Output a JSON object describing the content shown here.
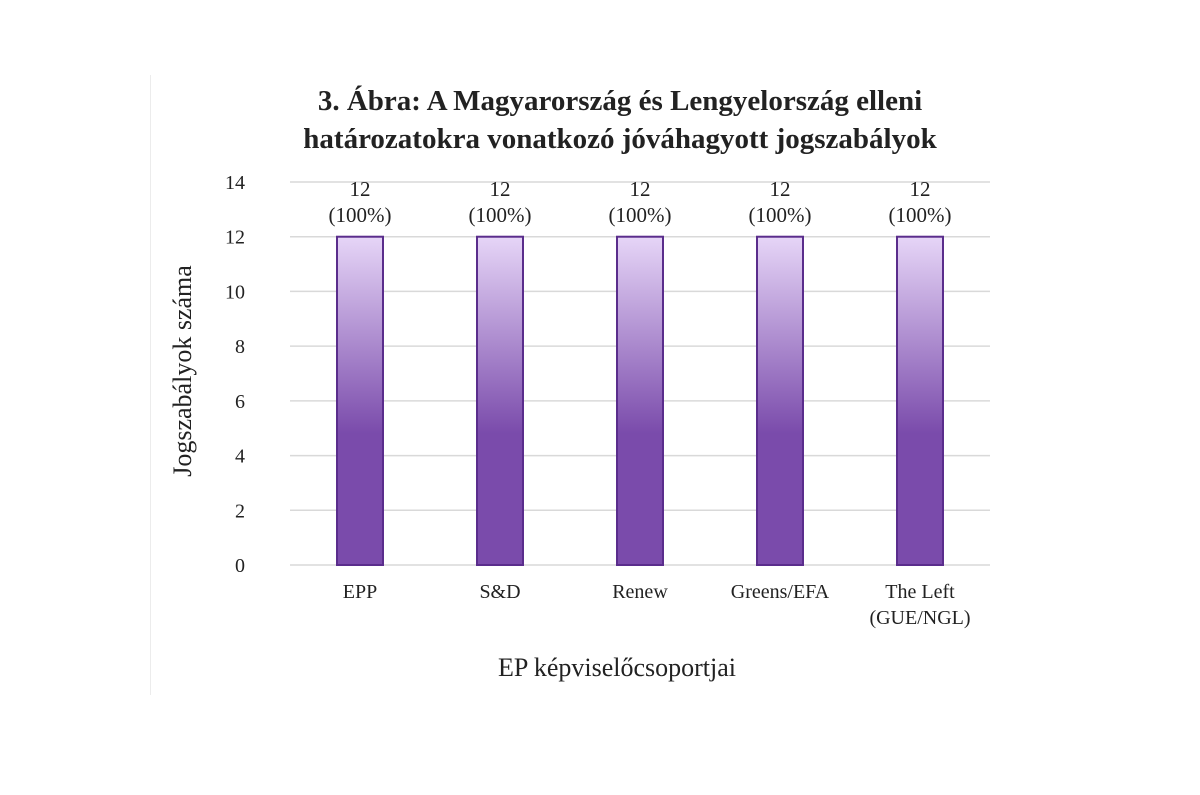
{
  "chart_data": {
    "type": "bar",
    "title_lines": [
      "3. Ábra: A Magyarország és Lengyelország elleni",
      "határozatokra vonatkozó jóváhagyott jogszabályok"
    ],
    "xlabel": "EP képviselőcsoportjai",
    "ylabel": "Jogszabályok száma",
    "categories": [
      [
        "EPP"
      ],
      [
        "S&D"
      ],
      [
        "Renew"
      ],
      [
        "Greens/EFA"
      ],
      [
        "The Left",
        "(GUE/NGL)"
      ]
    ],
    "values": [
      12,
      12,
      12,
      12,
      12
    ],
    "data_labels": [
      [
        "12",
        "(100%)"
      ],
      [
        "12",
        "(100%)"
      ],
      [
        "12",
        "(100%)"
      ],
      [
        "12",
        "(100%)"
      ],
      [
        "12",
        "(100%)"
      ]
    ],
    "ylim": [
      0,
      14
    ],
    "yticks": [
      0,
      2,
      4,
      6,
      8,
      10,
      12,
      14
    ],
    "grid": true,
    "legend": "none",
    "colors": {
      "bar_top": "#e6d5f7",
      "bar_bottom": "#7a4bab",
      "bar_stroke": "#5a2d8c",
      "grid": "#d9d9d9"
    }
  }
}
